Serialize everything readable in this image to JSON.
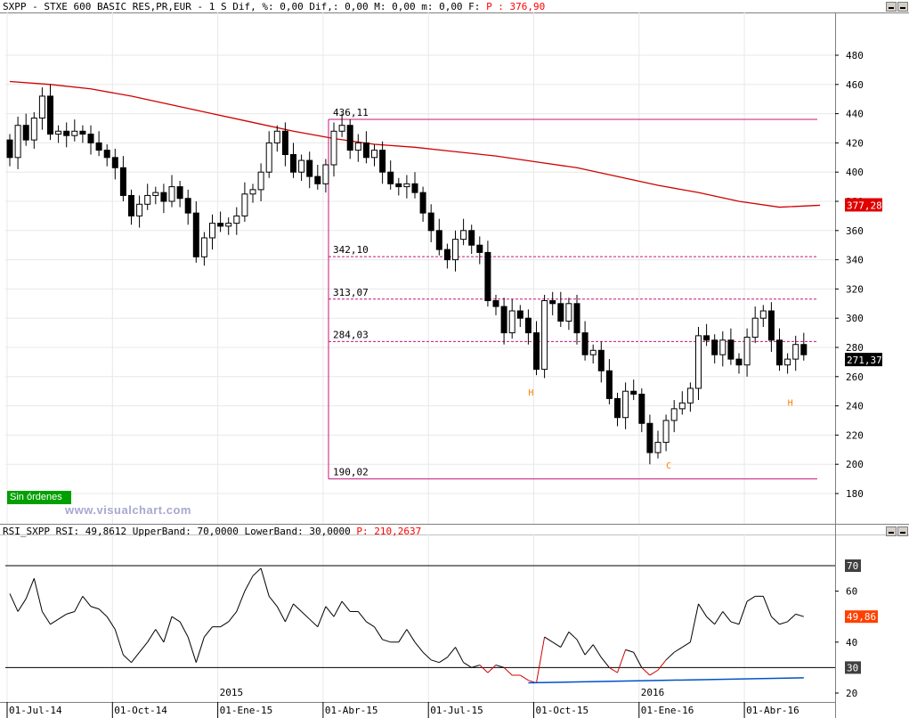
{
  "main_header": {
    "prefix": "SXPP - STXE 600 BASIC RES,PR,EUR - 1 S Dif, %: 0,00 Dif,: 0,00 M: 0,00 m: 0,00 F: ",
    "price": "P : 376,90"
  },
  "rsi_header": {
    "prefix": "RSI_SXPP RSI: 49,8612 UpperBand: 70,0000 LowerBand: 30,0000 ",
    "price": "P: 210,2637"
  },
  "status_badge": "Sin órdenes",
  "watermark": "www.visualchart.com",
  "colors": {
    "ma": "#d00000",
    "fib": "#c8147a",
    "label": "#ff8000",
    "rsi_line": "#000000",
    "rsi_oversold": "#d00000",
    "rsi_baseline": "#0050c8",
    "bar_bull": "#ffffff",
    "bar_bear": "#000000",
    "price_tag_ma": "#e00000",
    "price_tag_last": "#000000",
    "rsi_tag": "#ff4000",
    "band_tag": "#404040"
  },
  "chart_data": [
    {
      "type": "candlestick",
      "title": "SXPP - STXE 600 BASIC RES,PR,EUR - 1 S",
      "ylim": [
        160,
        500
      ],
      "y_ticks": [
        "480",
        "460",
        "440",
        "420",
        "400",
        "380",
        "360",
        "340",
        "320",
        "300",
        "280",
        "260",
        "240",
        "220",
        "200",
        "180",
        "160"
      ],
      "y_tick_values": [
        480,
        460,
        440,
        420,
        400,
        380,
        360,
        340,
        320,
        300,
        280,
        260,
        240,
        220,
        200,
        180,
        160
      ],
      "x_labels": [
        "01-Jul-14",
        "01-Oct-14",
        "01-Ene-15",
        "01-Abr-15",
        "01-Jul-15",
        "01-Oct-15",
        "01-Ene-16",
        "01-Abr-16"
      ],
      "x_label_weeks": [
        0,
        13,
        26,
        39,
        52,
        65,
        78,
        91
      ],
      "year_labels": [
        {
          "text": "2015",
          "week": 26
        },
        {
          "text": "2016",
          "week": 78
        }
      ],
      "series_closes": [
        410,
        432,
        422,
        437,
        452,
        426,
        428,
        425,
        428,
        426,
        420,
        415,
        410,
        403,
        384,
        370,
        378,
        384,
        386,
        380,
        390,
        382,
        372,
        342,
        355,
        365,
        363,
        365,
        370,
        385,
        388,
        400,
        420,
        428,
        412,
        400,
        408,
        397,
        392,
        405,
        428,
        432,
        415,
        420,
        410,
        415,
        400,
        392,
        390,
        392,
        386,
        372,
        360,
        347,
        340,
        354,
        360,
        350,
        345,
        312,
        308,
        290,
        305,
        300,
        290,
        265,
        312,
        310,
        298,
        310,
        290,
        275,
        278,
        264,
        245,
        232,
        250,
        248,
        228,
        208,
        215,
        230,
        238,
        242,
        252,
        288,
        285,
        275,
        285,
        272,
        268,
        287,
        300,
        305,
        285,
        268,
        272,
        282,
        275
      ],
      "moving_average": {
        "period_label": "MA",
        "values": [
          462,
          460,
          457,
          452,
          446,
          440,
          434,
          428,
          423,
          419,
          417,
          414,
          411,
          407,
          403,
          397,
          391,
          386,
          380,
          376,
          377.28
        ],
        "last_value": "377,28"
      },
      "fibonacci": {
        "start_week": 40,
        "end_week": 100,
        "levels": [
          {
            "label": "436,11",
            "value": 436.11
          },
          {
            "label": "342,10",
            "value": 342.1
          },
          {
            "label": "313,07",
            "value": 313.07
          },
          {
            "label": "284,03",
            "value": 284.03
          },
          {
            "label": "190,02",
            "value": 190.02
          }
        ]
      },
      "annotations": [
        {
          "text": "H",
          "week": 64,
          "value": 247
        },
        {
          "text": "C",
          "week": 81,
          "value": 197
        },
        {
          "text": "H",
          "week": 96,
          "value": 240
        }
      ],
      "last_price_tag": "271,37"
    },
    {
      "type": "line",
      "title": "RSI_SXPP RSI",
      "ylim": [
        20,
        80
      ],
      "y_ticks": [
        "60",
        "40",
        "20"
      ],
      "y_tick_values": [
        60,
        40,
        20
      ],
      "upper_band": 70,
      "lower_band": 30,
      "upper_band_label": "70",
      "lower_band_label": "30",
      "last_value": "49,86",
      "series": [
        {
          "values": [
            59,
            52,
            57,
            65,
            52,
            47,
            49,
            51,
            52,
            58,
            54,
            53,
            50,
            45,
            35,
            32,
            36,
            40,
            45,
            40,
            50,
            48,
            42,
            32,
            42,
            46,
            46,
            48,
            52,
            60,
            66,
            69,
            58,
            54,
            48,
            55,
            52,
            49,
            46,
            54,
            50,
            56,
            52,
            52,
            48,
            46,
            41,
            40,
            40,
            45,
            40,
            36,
            33,
            32,
            34,
            38,
            32,
            30,
            31,
            28,
            31,
            30,
            27,
            27,
            25,
            24,
            42,
            40,
            38,
            44,
            41,
            35,
            39,
            34,
            30,
            28,
            37,
            36,
            30,
            27,
            29,
            33,
            36,
            38,
            40,
            55,
            50,
            47,
            52,
            48,
            47,
            56,
            58,
            58,
            50,
            47,
            48,
            51,
            50
          ]
        }
      ],
      "baseline_series": {
        "start_week": 64,
        "values": [
          24,
          26
        ]
      }
    }
  ]
}
